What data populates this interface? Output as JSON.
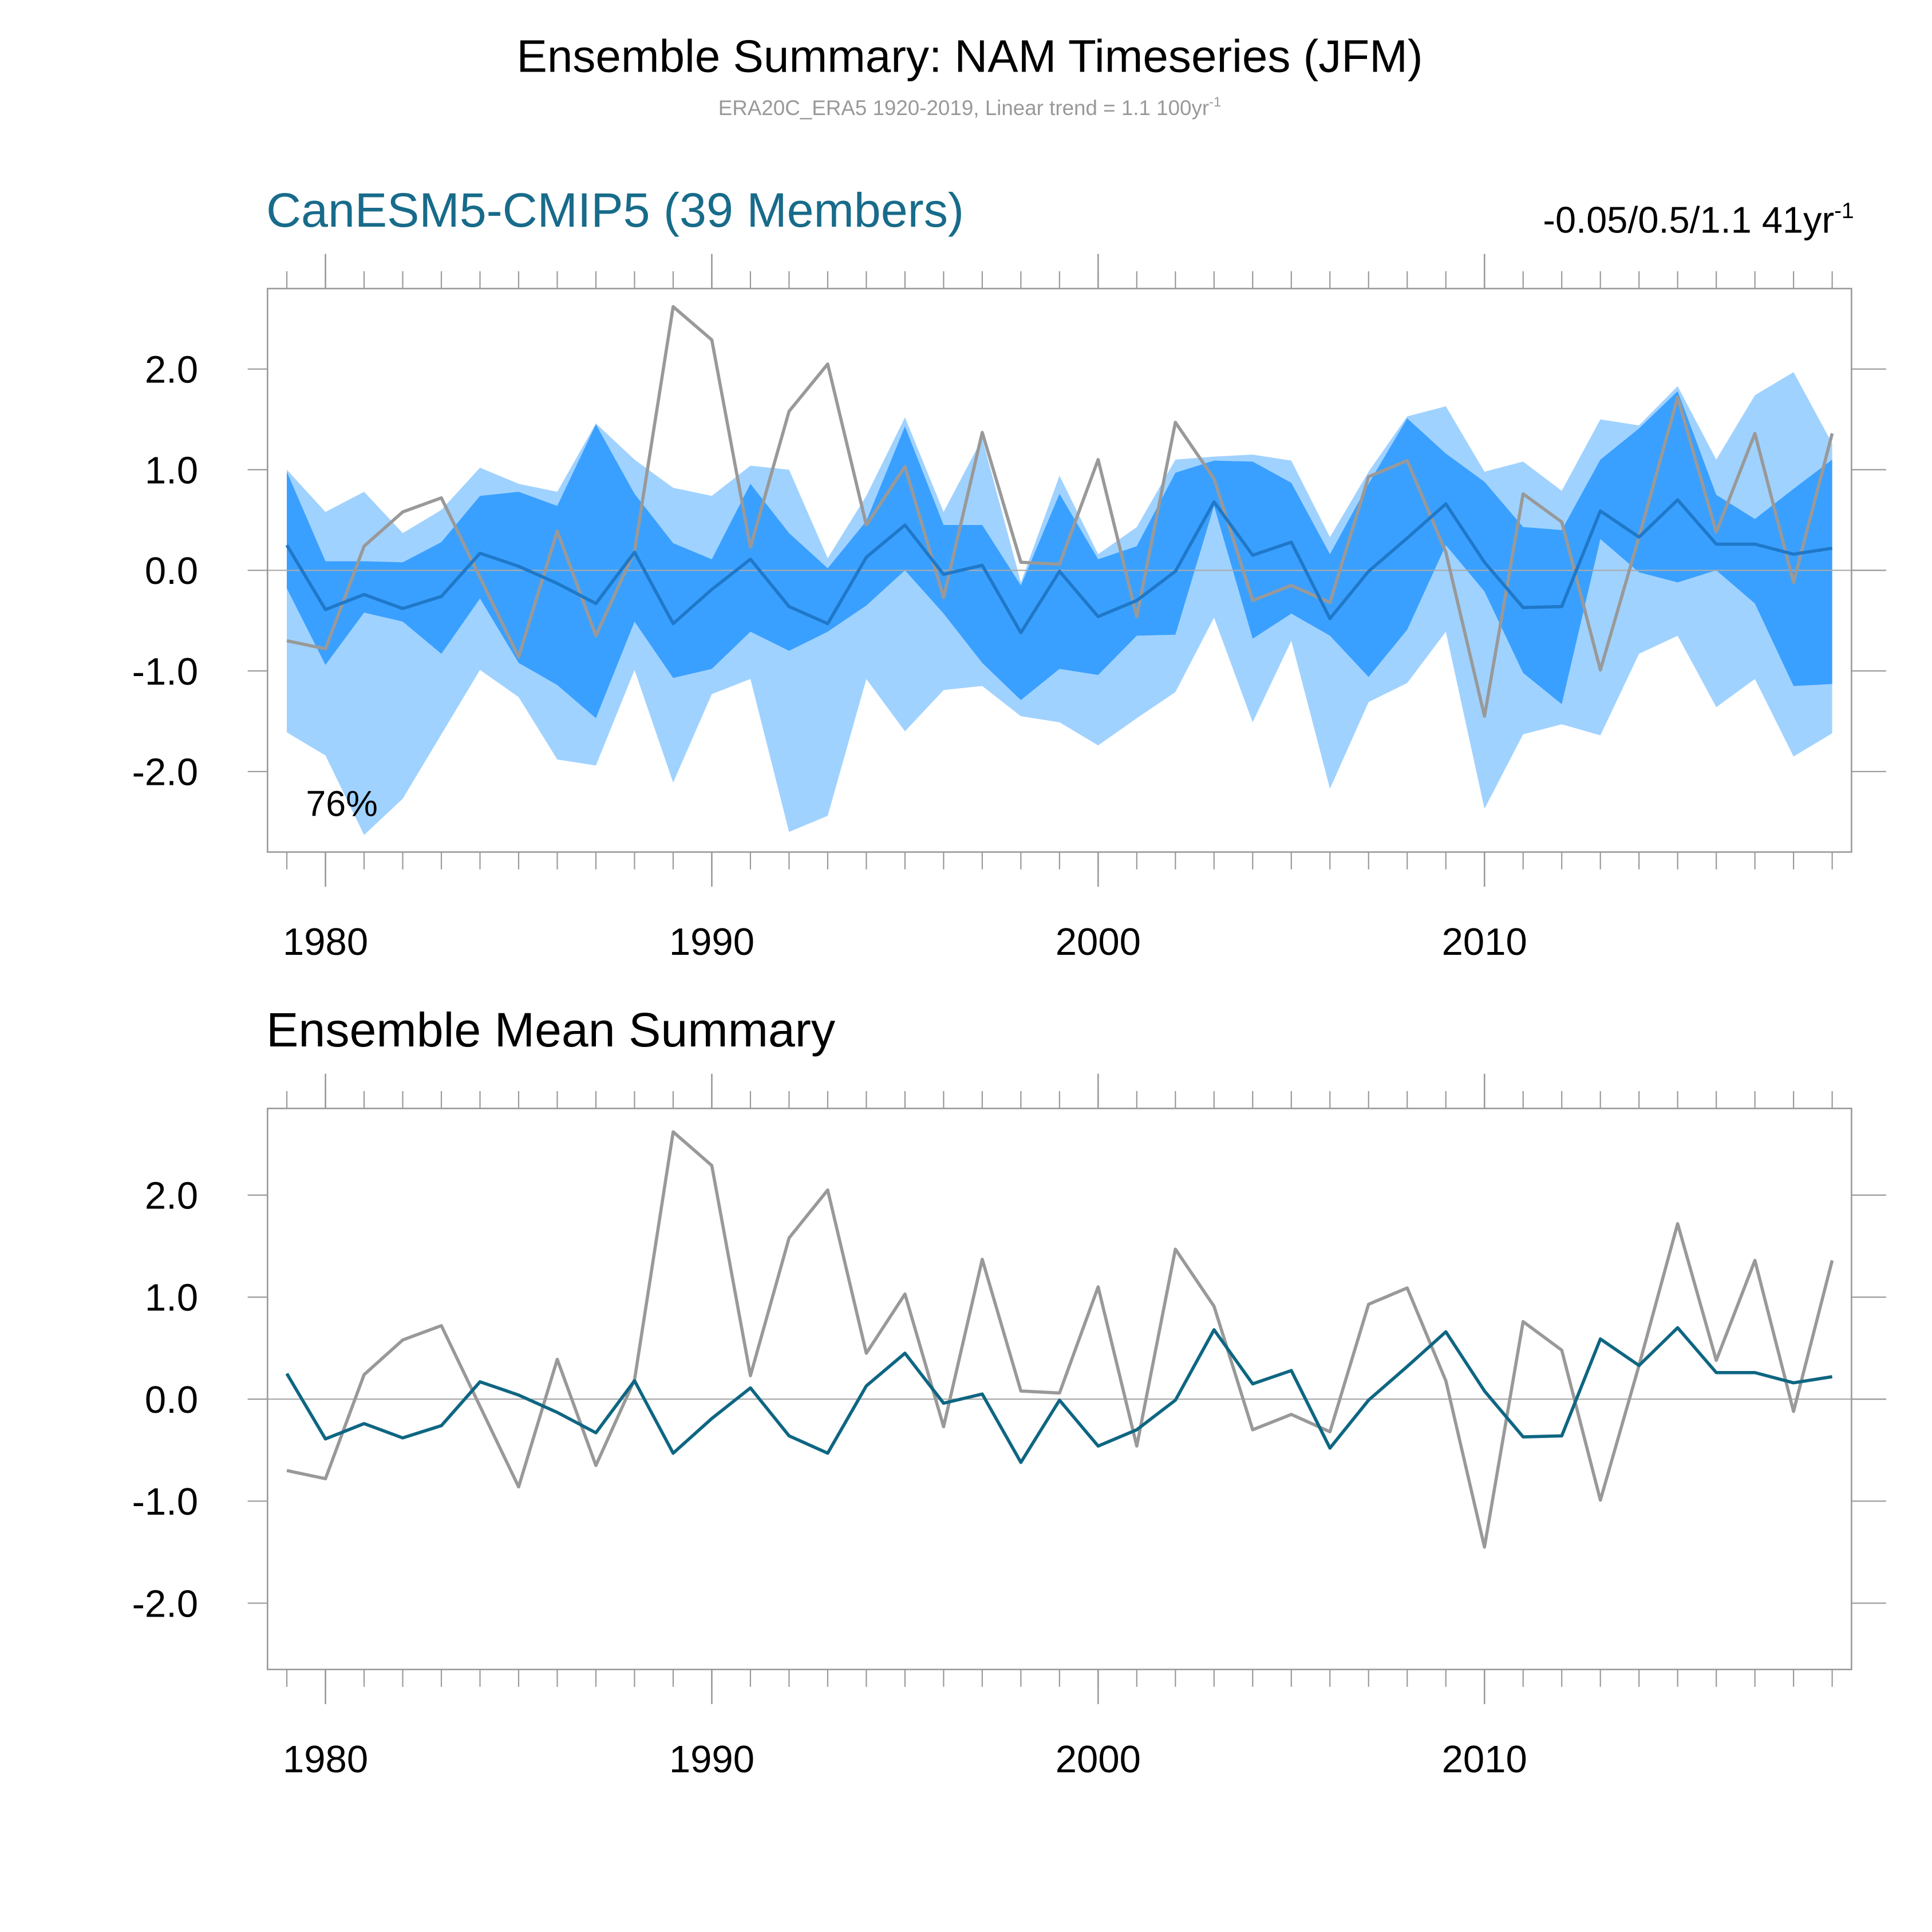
{
  "header": {
    "title": "Ensemble Summary: NAM Timeseries (JFM)",
    "subtitle": "ERA20C_ERA5 1920-2019, Linear trend = 1.1 100yr",
    "subtitle_sup": "-1"
  },
  "chart_data": [
    {
      "type": "line",
      "title": "CanESM5-CMIP5 (39 Members)",
      "title_color": "#186b8a",
      "annotation_right": "-0.05/0.5/1.1 41yr",
      "annotation_right_sup": "-1",
      "percent_label": "76%",
      "x": [
        1979,
        1980,
        1981,
        1982,
        1983,
        1984,
        1985,
        1986,
        1987,
        1988,
        1989,
        1990,
        1991,
        1992,
        1993,
        1994,
        1995,
        1996,
        1997,
        1998,
        1999,
        2000,
        2001,
        2002,
        2003,
        2004,
        2005,
        2006,
        2007,
        2008,
        2009,
        2010,
        2011,
        2012,
        2013,
        2014,
        2015,
        2016,
        2017,
        2018,
        2019
      ],
      "xlim": [
        1978.5,
        2019.5
      ],
      "xticks": [
        1980,
        1990,
        2000,
        2010
      ],
      "ylim": [
        -2.8,
        2.8
      ],
      "yticks": [
        {
          "value": 2,
          "label": "2.0"
        },
        {
          "value": 1,
          "label": "1.0"
        },
        {
          "value": 0,
          "label": "0.0"
        },
        {
          "value": -1,
          "label": "-1.0"
        },
        {
          "value": -2,
          "label": "-2.0"
        }
      ],
      "reference_line": 0,
      "bands": [
        {
          "color": "#a0d2ff",
          "upper": [
            1.0,
            0.58,
            0.78,
            0.37,
            0.6,
            1.02,
            0.86,
            0.78,
            1.46,
            1.1,
            0.82,
            0.74,
            1.04,
            1.0,
            0.12,
            0.74,
            1.52,
            0.58,
            1.31,
            -0.12,
            0.94,
            0.16,
            0.43,
            1.1,
            1.13,
            1.15,
            1.09,
            0.33,
            0.98,
            1.53,
            1.63,
            0.98,
            1.08,
            0.79,
            1.5,
            1.44,
            1.83,
            1.1,
            1.74,
            1.97,
            1.26
          ],
          "lower": [
            -1.61,
            -1.84,
            -2.63,
            -2.27,
            -1.63,
            -0.99,
            -1.26,
            -1.88,
            -1.94,
            -0.99,
            -2.11,
            -1.23,
            -1.08,
            -2.6,
            -2.44,
            -1.08,
            -1.6,
            -1.19,
            -1.15,
            -1.45,
            -1.51,
            -1.74,
            -1.47,
            -1.21,
            -0.47,
            -1.51,
            -0.7,
            -2.17,
            -1.31,
            -1.12,
            -0.61,
            -2.37,
            -1.63,
            -1.53,
            -1.64,
            -0.83,
            -0.65,
            -1.36,
            -1.08,
            -1.85,
            -1.62
          ]
        },
        {
          "color": "#3aa0ff",
          "upper": [
            0.98,
            0.09,
            0.09,
            0.08,
            0.28,
            0.74,
            0.78,
            0.64,
            1.45,
            0.76,
            0.27,
            0.11,
            0.86,
            0.37,
            0.02,
            0.49,
            1.43,
            0.45,
            0.45,
            -0.15,
            0.76,
            0.11,
            0.24,
            0.97,
            1.09,
            1.08,
            0.87,
            0.16,
            0.86,
            1.51,
            1.16,
            0.88,
            0.43,
            0.4,
            1.1,
            1.41,
            1.78,
            0.75,
            0.51,
            0.81,
            1.1
          ],
          "lower": [
            -0.18,
            -0.94,
            -0.42,
            -0.51,
            -0.83,
            -0.28,
            -0.92,
            -1.14,
            -1.47,
            -0.51,
            -1.07,
            -0.98,
            -0.61,
            -0.8,
            -0.61,
            -0.35,
            0.0,
            -0.43,
            -0.92,
            -1.29,
            -0.98,
            -1.04,
            -0.65,
            -0.64,
            0.64,
            -0.68,
            -0.43,
            -0.65,
            -1.06,
            -0.59,
            0.25,
            -0.21,
            -1.02,
            -1.33,
            0.31,
            -0.02,
            -0.12,
            0.0,
            -0.33,
            -1.15,
            -1.13
          ]
        }
      ],
      "series": [
        {
          "color": "#999999",
          "values": [
            -0.7,
            -0.78,
            0.24,
            0.58,
            0.72,
            -0.07,
            -0.86,
            0.39,
            -0.65,
            0.19,
            2.62,
            2.29,
            0.23,
            1.58,
            2.05,
            0.45,
            1.03,
            -0.27,
            1.37,
            0.08,
            0.06,
            1.1,
            -0.46,
            1.47,
            0.91,
            -0.3,
            -0.15,
            -0.32,
            0.93,
            1.09,
            0.18,
            -1.45,
            0.76,
            0.48,
            -0.99,
            0.33,
            1.72,
            0.38,
            1.36,
            -0.12,
            1.36
          ]
        },
        {
          "color": "#1f78c8",
          "values": [
            0.25,
            -0.39,
            -0.24,
            -0.38,
            -0.26,
            0.17,
            0.04,
            -0.13,
            -0.33,
            0.18,
            -0.53,
            -0.19,
            0.11,
            -0.36,
            -0.53,
            0.13,
            0.45,
            -0.04,
            0.05,
            -0.62,
            -0.01,
            -0.46,
            -0.3,
            -0.01,
            0.68,
            0.15,
            0.28,
            -0.48,
            -0.01,
            0.32,
            0.66,
            0.08,
            -0.37,
            -0.36,
            0.59,
            0.33,
            0.7,
            0.26,
            0.26,
            0.16,
            0.22
          ]
        }
      ]
    },
    {
      "type": "line",
      "title": "Ensemble Mean Summary",
      "title_color": "#000000",
      "x": [
        1979,
        1980,
        1981,
        1982,
        1983,
        1984,
        1985,
        1986,
        1987,
        1988,
        1989,
        1990,
        1991,
        1992,
        1993,
        1994,
        1995,
        1996,
        1997,
        1998,
        1999,
        2000,
        2001,
        2002,
        2003,
        2004,
        2005,
        2006,
        2007,
        2008,
        2009,
        2010,
        2011,
        2012,
        2013,
        2014,
        2015,
        2016,
        2017,
        2018,
        2019
      ],
      "xlim": [
        1978.5,
        2019.5
      ],
      "xticks": [
        1980,
        1990,
        2000,
        2010
      ],
      "ylim": [
        -2.65,
        2.85
      ],
      "yticks": [
        {
          "value": 2,
          "label": "2.0"
        },
        {
          "value": 1,
          "label": "1.0"
        },
        {
          "value": 0,
          "label": "0.0"
        },
        {
          "value": -1,
          "label": "-1.0"
        },
        {
          "value": -2,
          "label": "-2.0"
        }
      ],
      "reference_line": 0,
      "series": [
        {
          "color": "#999999",
          "values": [
            -0.7,
            -0.78,
            0.24,
            0.58,
            0.72,
            -0.07,
            -0.86,
            0.39,
            -0.65,
            0.19,
            2.62,
            2.29,
            0.23,
            1.58,
            2.05,
            0.45,
            1.03,
            -0.27,
            1.37,
            0.08,
            0.06,
            1.1,
            -0.46,
            1.47,
            0.91,
            -0.3,
            -0.15,
            -0.32,
            0.93,
            1.09,
            0.18,
            -1.45,
            0.76,
            0.48,
            -0.99,
            0.33,
            1.72,
            0.38,
            1.36,
            -0.12,
            1.36
          ]
        },
        {
          "color": "#0e6682",
          "values": [
            0.25,
            -0.39,
            -0.24,
            -0.38,
            -0.26,
            0.17,
            0.04,
            -0.13,
            -0.33,
            0.18,
            -0.53,
            -0.19,
            0.11,
            -0.36,
            -0.53,
            0.13,
            0.45,
            -0.04,
            0.05,
            -0.62,
            -0.01,
            -0.46,
            -0.3,
            -0.01,
            0.68,
            0.15,
            0.28,
            -0.48,
            -0.01,
            0.32,
            0.66,
            0.08,
            -0.37,
            -0.36,
            0.59,
            0.33,
            0.7,
            0.26,
            0.26,
            0.16,
            0.22
          ]
        }
      ]
    }
  ]
}
